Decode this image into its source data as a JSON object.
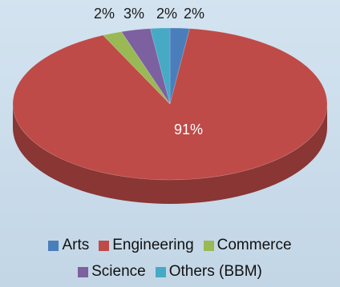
{
  "chart_data": {
    "type": "pie",
    "title": "",
    "slices": [
      {
        "name": "Arts",
        "value": 2,
        "label": "2%",
        "color": "#4a7ebb"
      },
      {
        "name": "Engineering",
        "value": 91,
        "label": "91%",
        "color": "#be4b48"
      },
      {
        "name": "Commerce",
        "value": 2,
        "label": "2%",
        "color": "#98b954"
      },
      {
        "name": "Science",
        "value": 3,
        "label": "3%",
        "color": "#7d60a0"
      },
      {
        "name": "Others (BBM)",
        "value": 2,
        "label": "2%",
        "color": "#46aac5"
      }
    ],
    "legend_position": "bottom",
    "style": "3d"
  }
}
